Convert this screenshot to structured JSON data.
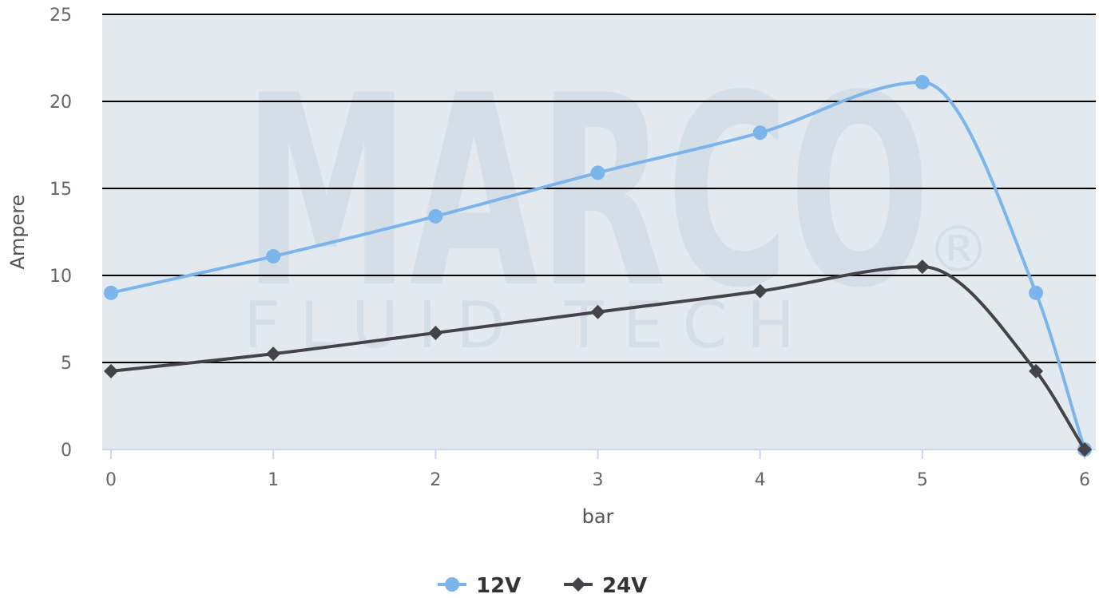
{
  "chart_data": {
    "type": "line",
    "title": "",
    "xlabel": "bar",
    "ylabel": "Ampere",
    "xlim": [
      0,
      6
    ],
    "ylim": [
      0,
      25
    ],
    "x_ticks": [
      "0",
      "1",
      "2",
      "3",
      "4",
      "5",
      "6"
    ],
    "y_ticks": [
      "0",
      "5",
      "10",
      "15",
      "20",
      "25"
    ],
    "grid": true,
    "legend_position": "bottom-center",
    "watermark": {
      "text": "MARCO",
      "subtext": "FLUID TECH",
      "mark": "®"
    },
    "series": [
      {
        "name": "12V",
        "color": "#7cb5ec",
        "marker": "circle",
        "points": [
          [
            0,
            9
          ],
          [
            1,
            11.1
          ],
          [
            2,
            13.4
          ],
          [
            3,
            15.9
          ],
          [
            4,
            18.2
          ],
          [
            5,
            21.1
          ],
          [
            5.7,
            9
          ],
          [
            6,
            0
          ]
        ]
      },
      {
        "name": "24V",
        "color": "#434348",
        "marker": "diamond",
        "points": [
          [
            0,
            4.5
          ],
          [
            1,
            5.5
          ],
          [
            2,
            6.7
          ],
          [
            3,
            7.9
          ],
          [
            4,
            9.1
          ],
          [
            5,
            10.5
          ],
          [
            5.7,
            4.5
          ],
          [
            6,
            0
          ]
        ]
      }
    ]
  }
}
